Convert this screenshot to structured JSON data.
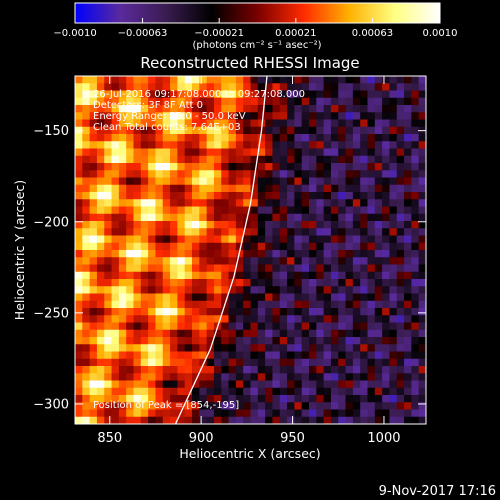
{
  "chart_data": {
    "type": "heatmap",
    "title": "Reconstructed RHESSI Image",
    "xlabel": "Heliocentric X (arcsec)",
    "ylabel": "Heliocentric Y (arcsec)",
    "xlim": [
      831,
      1023
    ],
    "ylim": [
      -311,
      -120
    ],
    "x_ticks": [
      {
        "value": 850,
        "label": "850"
      },
      {
        "value": 900,
        "label": "900"
      },
      {
        "value": 950,
        "label": "950"
      },
      {
        "value": 1000,
        "label": "1000"
      }
    ],
    "y_ticks": [
      {
        "value": -150,
        "label": "−150"
      },
      {
        "value": -200,
        "label": "−200"
      },
      {
        "value": -250,
        "label": "−250"
      },
      {
        "value": -300,
        "label": "−300"
      }
    ],
    "colorbar": {
      "range": [
        -0.001,
        0.001
      ],
      "ticks": [
        {
          "value": -0.001,
          "label": "−0.0010"
        },
        {
          "value": -0.00063,
          "label": "−0.00063"
        },
        {
          "value": -0.00021,
          "label": "−0.00021"
        },
        {
          "value": 0.00021,
          "label": "0.00021"
        },
        {
          "value": 0.00063,
          "label": "0.00063"
        },
        {
          "value": 0.001,
          "label": "0.0010"
        }
      ],
      "unit_label": "(photons cm⁻² s⁻¹ asec⁻²)"
    },
    "annotations": {
      "time_range": "26-Jul-2016 09:17:08.000 to 09:27:08.000",
      "detectors": "Detectors: 3F 8F  Att 0",
      "energy_range": "Energy Range: 25.0 - 50.0 keV",
      "clean_counts": "Clean    Total counts: 7.64E+03",
      "peak_position": "Position of Peak = [854,-195]"
    },
    "limb_curve": [
      {
        "x": 886,
        "y": -311
      },
      {
        "x": 905,
        "y": -270
      },
      {
        "x": 918,
        "y": -230
      },
      {
        "x": 927,
        "y": -190
      },
      {
        "x": 933,
        "y": -150
      },
      {
        "x": 936,
        "y": -120
      }
    ],
    "image_grid": {
      "columns": 48,
      "rows": 48
    },
    "palette": [
      "#0000ff",
      "#5a2a9c",
      "#3a1c50",
      "#000000",
      "#7a0000",
      "#ff2a00",
      "#ffb000",
      "#ffff80",
      "#ffffff"
    ]
  },
  "footer": {
    "date": "9-Nov-2017 17:16"
  }
}
